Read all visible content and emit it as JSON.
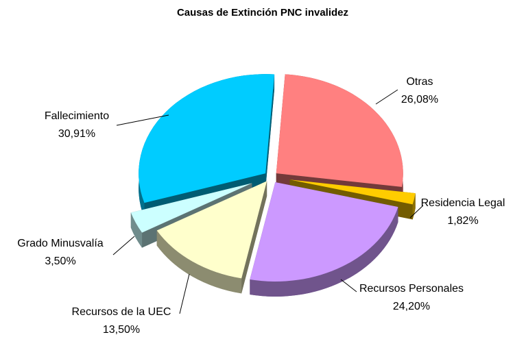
{
  "chart_data": {
    "type": "pie3d",
    "title": "Causas de Extinción PNC invalidez",
    "categories": [
      "Otras",
      "Residencia Legal",
      "Recursos Personales",
      "Recursos de la UEC",
      "Grado Minusvalía",
      "Fallecimiento"
    ],
    "values": [
      26.08,
      1.82,
      24.2,
      13.5,
      3.5,
      30.91
    ],
    "value_labels": [
      "26,08%",
      "1,82%",
      "24,20%",
      "13,50%",
      "3,50%",
      "30,91%"
    ],
    "colors": [
      "#ff8080",
      "#ffcc00",
      "#cc99ff",
      "#ffffcc",
      "#ccffff",
      "#00ccff"
    ]
  }
}
